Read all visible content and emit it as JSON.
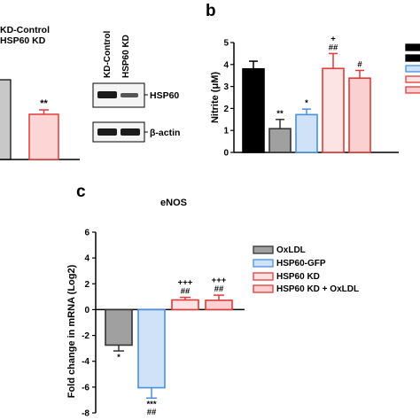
{
  "panel_a": {
    "legend": [
      "KD-Control",
      "HSP60 KD"
    ],
    "bar_annotation": "**",
    "blot_columns": [
      "KD-Control",
      "HSP60 KD"
    ],
    "blot_labels": [
      "HSP60",
      "β-actin"
    ],
    "colors": {
      "control": "#c8c8c8",
      "kd": "#fcd5d5",
      "kd_edge": "#e03a3a"
    }
  },
  "chart_data": [
    {
      "panel": "b",
      "type": "bar",
      "ylabel": "Nitrite (μM)",
      "ylim": [
        0,
        5
      ],
      "yticks": [
        0,
        1,
        2,
        3,
        4,
        5
      ],
      "values": [
        3.8,
        1.08,
        1.72,
        3.82,
        3.38
      ],
      "errors": [
        0.35,
        0.42,
        0.25,
        0.68,
        0.35
      ],
      "annotations": [
        "",
        "**",
        "*",
        "+\n##",
        "#"
      ],
      "fills": [
        "#000000",
        "#a0a0a0",
        "#cfe2f7",
        "#fce4e4",
        "#fad0d0"
      ],
      "edges": [
        "#000000",
        "#333333",
        "#4a8fdd",
        "#e03a3a",
        "#e03a3a"
      ]
    },
    {
      "panel": "c",
      "type": "bar",
      "title": "eNOS",
      "ylabel": "Fold change in mRNA (Log2)",
      "ylim": [
        -8,
        6
      ],
      "yticks": [
        -8,
        -6,
        -4,
        -2,
        0,
        2,
        4,
        6
      ],
      "categories": [
        "OxLDL",
        "HSP60-GFP",
        "HSP60 KD",
        "HSP60 KD + OxLDL"
      ],
      "values": [
        -2.75,
        -6.05,
        0.75,
        0.72
      ],
      "errors": [
        0.45,
        0.8,
        0.2,
        0.4
      ],
      "annotations": [
        "*",
        "***\n##",
        "+++\n##",
        "+++\n##"
      ],
      "legend": [
        "OxLDL",
        "HSP60-GFP",
        "HSP60 KD",
        "HSP60 KD + OxLDL"
      ],
      "fills": [
        "#a0a0a0",
        "#cfe2f7",
        "#fce4e4",
        "#fad0d0"
      ],
      "edges": [
        "#333333",
        "#4a8fdd",
        "#e03a3a",
        "#e03a3a"
      ]
    }
  ],
  "panel_labels": {
    "b": "b",
    "c": "c"
  }
}
